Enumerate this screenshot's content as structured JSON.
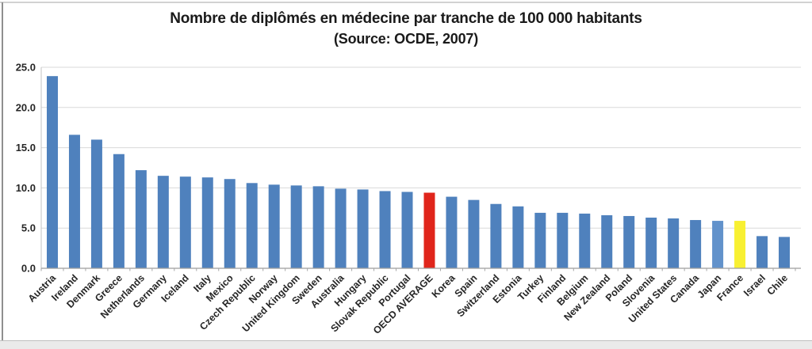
{
  "chart_data": {
    "type": "bar",
    "title": "Nombre de diplômés en médecine par tranche de 100 000 habitants",
    "subtitle": "(Source: OCDE, 2007)",
    "categories": [
      "Austria",
      "Ireland",
      "Denmark",
      "Greece",
      "Netherlands",
      "Germany",
      "Iceland",
      "Italy",
      "Mexico",
      "Czech Republic",
      "Norway",
      "United Kingdom",
      "Sweden",
      "Australia",
      "Hungary",
      "Slovak Republic",
      "Portugal",
      "OECD AVERAGE",
      "Korea",
      "Spain",
      "Switzerland",
      "Estonia",
      "Turkey",
      "Finland",
      "Belgium",
      "New Zealand",
      "Poland",
      "Slovenia",
      "United States",
      "Canada",
      "Japan",
      "France",
      "Israel",
      "Chile"
    ],
    "values": [
      23.9,
      16.6,
      16.0,
      14.2,
      12.2,
      11.5,
      11.4,
      11.3,
      11.1,
      10.6,
      10.4,
      10.3,
      10.2,
      9.9,
      9.8,
      9.6,
      9.5,
      9.4,
      8.9,
      8.5,
      8.0,
      7.7,
      6.9,
      6.9,
      6.8,
      6.6,
      6.5,
      6.3,
      6.2,
      6.0,
      5.9,
      5.9,
      4.0,
      3.9
    ],
    "bar_default_color": "#4f81bd",
    "bar_color_overrides": {
      "OECD AVERAGE": "#e0251b",
      "Japan": "#6292cb",
      "France": "#f8f032"
    },
    "xlabel": "",
    "ylabel": "",
    "ylim": [
      0,
      25
    ],
    "yticks": [
      {
        "value": 0,
        "label": "0.0"
      },
      {
        "value": 5,
        "label": "5.0"
      },
      {
        "value": 10,
        "label": "10.0"
      },
      {
        "value": 15,
        "label": "15.0"
      },
      {
        "value": 20,
        "label": "20.0"
      },
      {
        "value": 25,
        "label": "25.0"
      }
    ],
    "grid": true,
    "legend": "none"
  },
  "colors": {
    "gridline": "#d9d9d9",
    "baseline": "#9e9e9e",
    "y_axis_line": "#c3c3c3",
    "tick": "#a6a6a6",
    "label_text": "#262626"
  }
}
